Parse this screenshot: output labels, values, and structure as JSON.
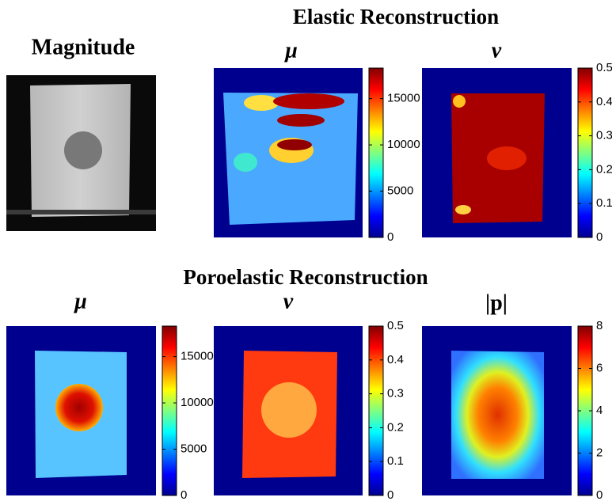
{
  "sections": [
    {
      "title": "Elastic Reconstruction"
    },
    {
      "title": "Poroelastic Reconstruction"
    }
  ],
  "panels": [
    {
      "title": "Magnitude"
    },
    {
      "title": "μ",
      "colorbar": {
        "lim": [
          0,
          18300
        ],
        "ticks": [
          0,
          5000,
          10000,
          15000
        ]
      }
    },
    {
      "title": "ν",
      "colorbar": {
        "lim": [
          0,
          0.5
        ],
        "ticks": [
          0,
          0.1,
          0.2,
          0.3,
          0.4,
          0.5
        ]
      }
    },
    {
      "title": "μ",
      "colorbar": {
        "lim": [
          0,
          18300
        ],
        "ticks": [
          0,
          5000,
          10000,
          15000
        ]
      }
    },
    {
      "title": "ν",
      "colorbar": {
        "lim": [
          0,
          0.5
        ],
        "ticks": [
          0,
          0.1,
          0.2,
          0.3,
          0.4,
          0.5
        ]
      }
    },
    {
      "title": "|p|",
      "colorbar": {
        "lim": [
          0,
          8
        ],
        "ticks": [
          0,
          2,
          4,
          6,
          8
        ]
      }
    }
  ]
}
